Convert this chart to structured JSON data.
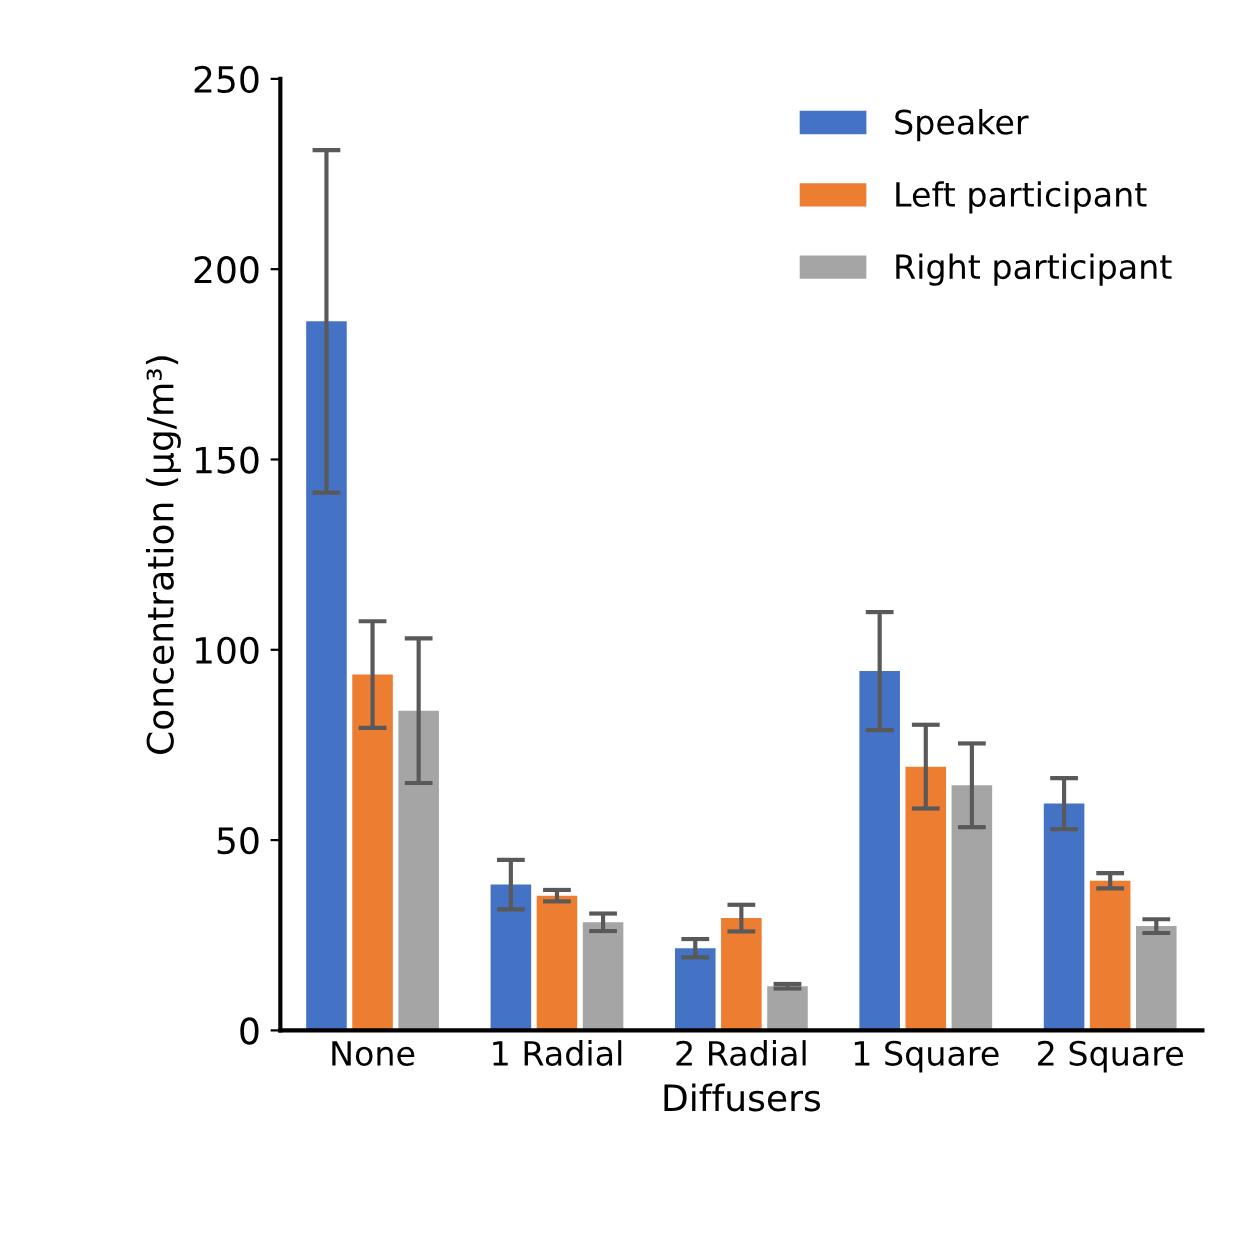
{
  "chart_data": {
    "type": "bar",
    "xlabel": "Diffusers",
    "ylabel": "Concentration (µg/m³)",
    "categories": [
      "None",
      "1 Radial",
      "2 Radial",
      "1 Square",
      "2 Square"
    ],
    "series": [
      {
        "name": "Speaker",
        "color": "#4472c4",
        "values": [
          186.3,
          38.3,
          21.6,
          94.4,
          59.6
        ],
        "errors": [
          45,
          6.5,
          2.4,
          15.5,
          6.7
        ]
      },
      {
        "name": "Left participant",
        "color": "#ed7d31",
        "values": [
          93.5,
          35.4,
          29.5,
          69.3,
          39.3
        ],
        "errors": [
          14,
          1.5,
          3.5,
          11,
          2
        ]
      },
      {
        "name": "Right participant",
        "color": "#a5a5a5",
        "values": [
          84,
          28.4,
          11.6,
          64.4,
          27.4
        ],
        "errors": [
          19,
          2.3,
          0.6,
          11,
          1.8
        ]
      }
    ],
    "ylim": [
      0,
      250
    ],
    "yticks": [
      0,
      50,
      100,
      150,
      200,
      250
    ],
    "grid": false,
    "legend": "top right"
  }
}
